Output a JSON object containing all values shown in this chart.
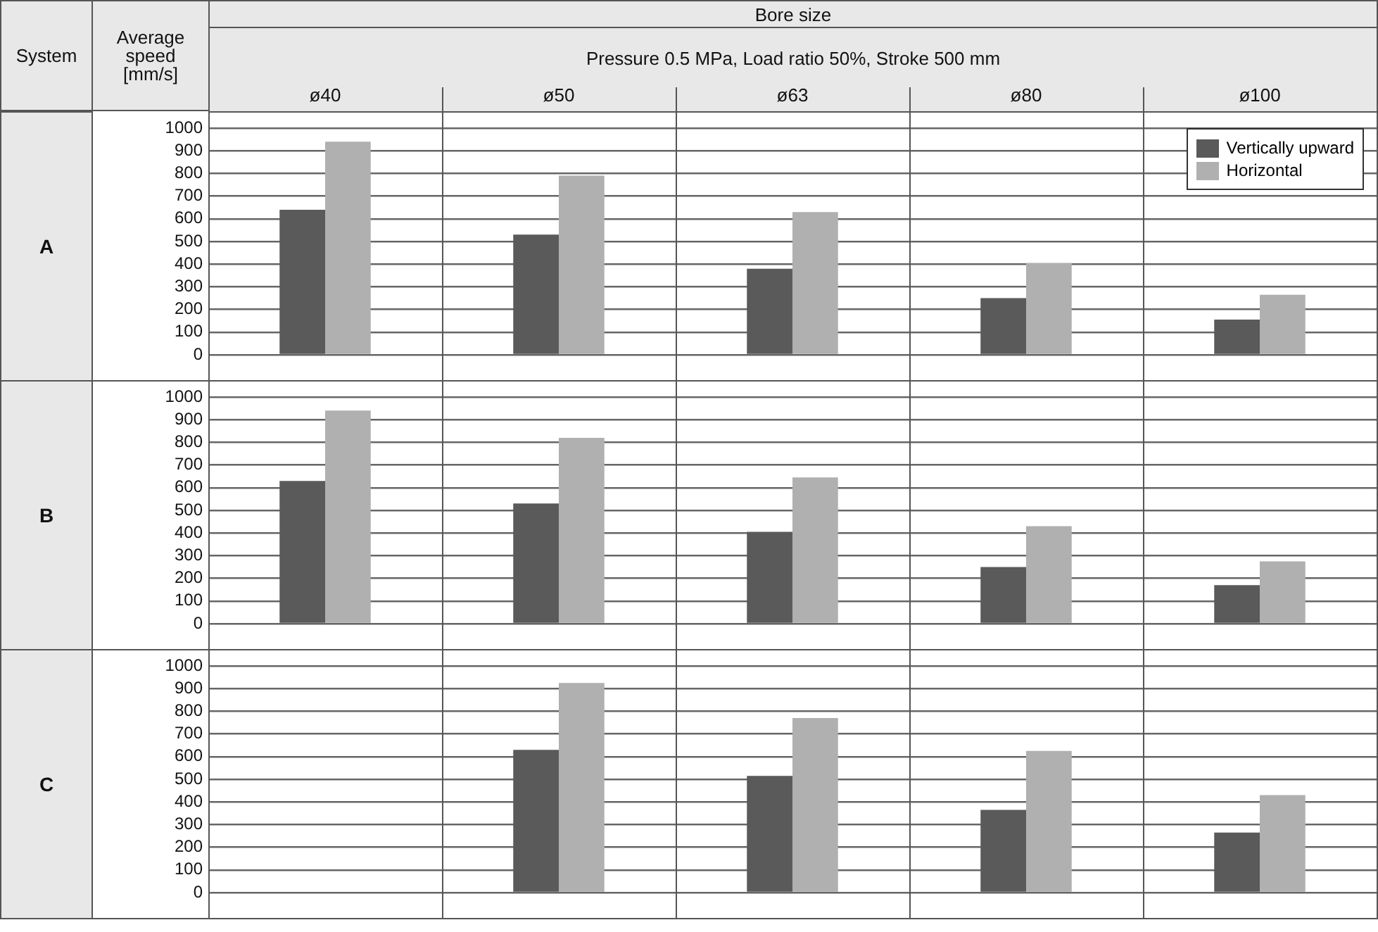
{
  "chart_data": [
    {
      "type": "bar",
      "title": "A",
      "subtitle": "Pressure 0.5 MPa, Load ratio 50%, Stroke 500 mm",
      "ylabel": "Average speed [mm/s]",
      "annotations": [
        "System",
        "Bore size"
      ],
      "categories": [
        "ø40",
        "ø50",
        "ø63",
        "ø80",
        "ø100"
      ],
      "series": [
        {
          "name": "Vertically upward",
          "color": "#5a5a5a",
          "values": [
            640,
            530,
            380,
            250,
            155
          ]
        },
        {
          "name": "Horizontal",
          "color": "#b0b0b0",
          "values": [
            940,
            790,
            630,
            405,
            265
          ]
        }
      ],
      "ylim": [
        0,
        1000
      ],
      "yticks": [
        0,
        100,
        200,
        300,
        400,
        500,
        600,
        700,
        800,
        900,
        1000
      ],
      "grid": "y",
      "legend": "top right"
    },
    {
      "type": "bar",
      "title": "B",
      "categories": [
        "ø40",
        "ø50",
        "ø63",
        "ø80",
        "ø100"
      ],
      "series": [
        {
          "color": "#5a5a5a",
          "values": [
            630,
            530,
            405,
            250,
            170
          ]
        },
        {
          "color": "#b0b0b0",
          "values": [
            940,
            820,
            645,
            430,
            275
          ]
        }
      ],
      "ylim": [
        0,
        1000
      ],
      "yticks": [
        0,
        100,
        200,
        300,
        400,
        500,
        600,
        700,
        800,
        900,
        1000
      ],
      "grid": "y",
      "tick_labels": "y"
    },
    {
      "type": "bar",
      "title": "C",
      "categories": [
        "ø40",
        "ø50",
        "ø63",
        "ø80",
        "ø100"
      ],
      "series": [
        {
          "color": "#5a5a5a",
          "values": [
            null,
            630,
            515,
            365,
            265
          ]
        },
        {
          "color": "#b0b0b0",
          "values": [
            null,
            925,
            770,
            625,
            430
          ]
        }
      ],
      "ylim": [
        0,
        1000
      ],
      "yticks": [
        0,
        100,
        200,
        300,
        400,
        500,
        600,
        700,
        800,
        900,
        1000
      ],
      "grid": "y",
      "tick_labels": "y"
    }
  ]
}
